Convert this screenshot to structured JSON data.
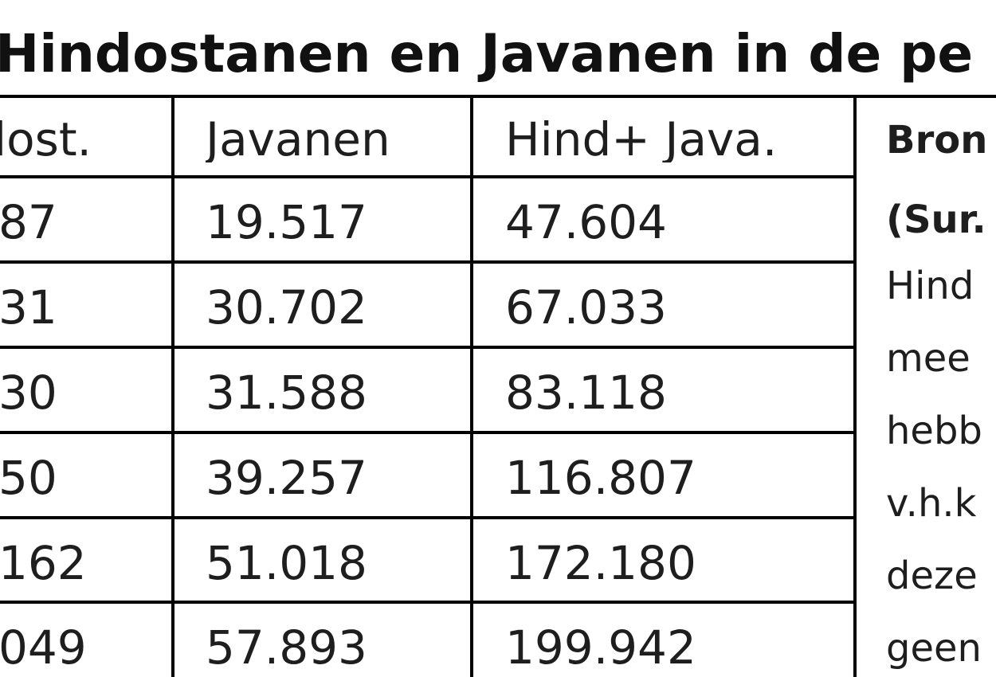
{
  "title": "Hindostanen en Javanen in de pe",
  "table": {
    "headers": [
      "lost.",
      "Javanen",
      "Hind+ Java."
    ],
    "rows": [
      [
        "87",
        "19.517",
        "47.604"
      ],
      [
        "31",
        "30.702",
        "67.033"
      ],
      [
        "30",
        "31.588",
        "83.118"
      ],
      [
        "50",
        "39.257",
        "116.807"
      ],
      [
        "162",
        "51.018",
        "172.180"
      ],
      [
        "049",
        "57.893",
        "199.942"
      ]
    ]
  },
  "note_lines": [
    "Bron",
    "(Sur.",
    "Hind",
    "mee",
    "hebb",
    "v.h.k",
    "deze",
    "geen"
  ]
}
